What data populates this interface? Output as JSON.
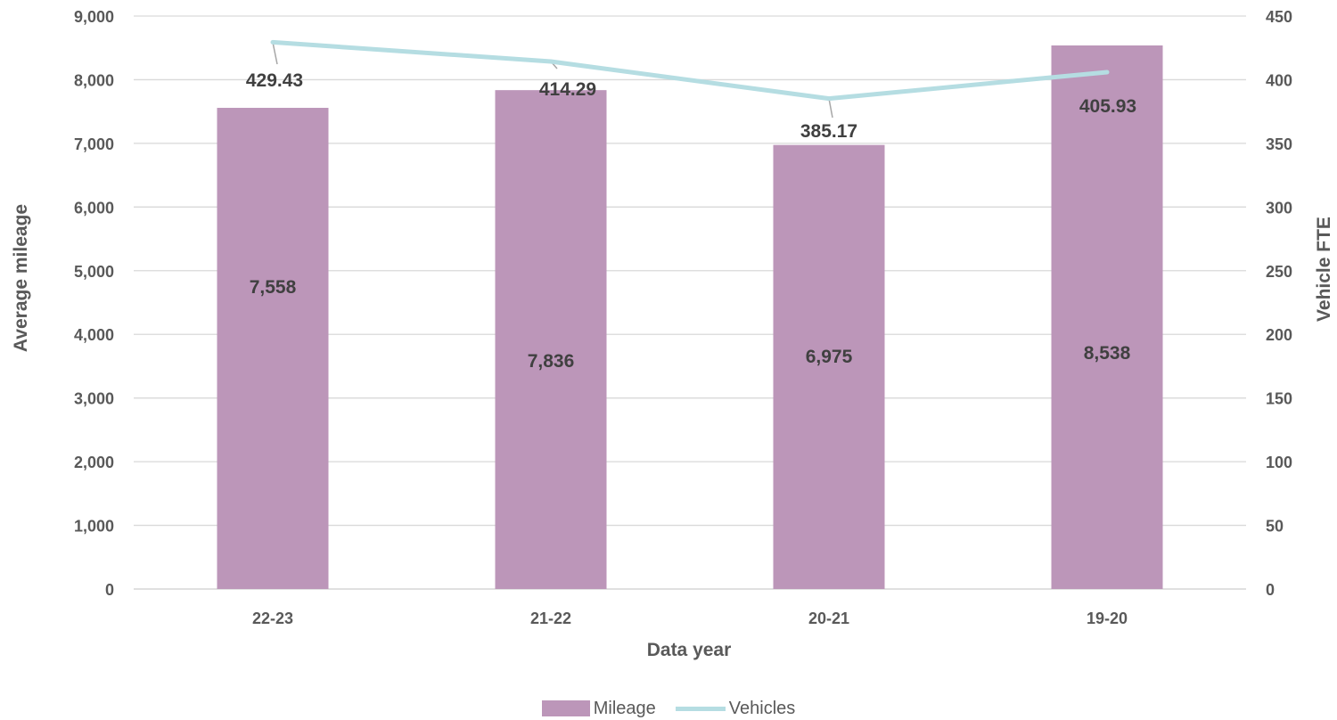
{
  "colors": {
    "bar": "#bc96b9",
    "line": "#b5dde2",
    "grid": "#d9d9d9",
    "axis_text": "#595959",
    "label_text": "#404040",
    "leader": "#a6a6a6"
  },
  "chart_data": {
    "type": "bar",
    "categories": [
      "22-23",
      "21-22",
      "20-21",
      "19-20"
    ],
    "series": [
      {
        "name": "Mileage",
        "type": "bar",
        "axis": "left",
        "values": [
          7558,
          7836,
          6975,
          8538
        ],
        "labels": [
          "7,558",
          "7,836",
          "6,975",
          "8,538"
        ]
      },
      {
        "name": "Vehicles",
        "type": "line",
        "axis": "right",
        "values": [
          429.43,
          414.29,
          385.17,
          405.93
        ],
        "labels": [
          "429.43",
          "414.29",
          "385.17",
          "405.93"
        ]
      }
    ],
    "xlabel": "Data year",
    "ylabel": "Average mileage",
    "y2label": "Vehicle FTE",
    "ylim": [
      0,
      9000
    ],
    "y2lim": [
      0,
      450
    ],
    "yticks": [
      "0",
      "1,000",
      "2,000",
      "3,000",
      "4,000",
      "5,000",
      "6,000",
      "7,000",
      "8,000",
      "9,000"
    ],
    "y2ticks": [
      "0",
      "50",
      "100",
      "150",
      "200",
      "250",
      "300",
      "350",
      "400",
      "450"
    ],
    "grid": true,
    "legend_position": "bottom"
  }
}
